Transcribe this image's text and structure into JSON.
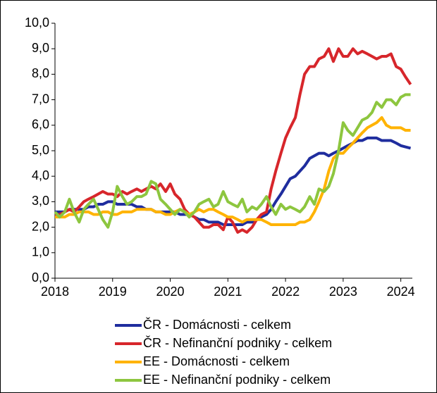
{
  "chart_data": {
    "type": "line",
    "x": [
      2018,
      2018.08,
      2018.17,
      2018.25,
      2018.33,
      2018.42,
      2018.5,
      2018.58,
      2018.67,
      2018.75,
      2018.83,
      2018.92,
      2019,
      2019.08,
      2019.17,
      2019.25,
      2019.33,
      2019.42,
      2019.5,
      2019.58,
      2019.67,
      2019.75,
      2019.83,
      2019.92,
      2020,
      2020.08,
      2020.17,
      2020.25,
      2020.33,
      2020.42,
      2020.5,
      2020.58,
      2020.67,
      2020.75,
      2020.83,
      2020.92,
      2021,
      2021.08,
      2021.17,
      2021.25,
      2021.33,
      2021.42,
      2021.5,
      2021.58,
      2021.67,
      2021.75,
      2021.83,
      2021.92,
      2022,
      2022.08,
      2022.17,
      2022.25,
      2022.33,
      2022.42,
      2022.5,
      2022.58,
      2022.67,
      2022.75,
      2022.83,
      2022.92,
      2023,
      2023.08,
      2023.17,
      2023.25,
      2023.33,
      2023.42,
      2023.5,
      2023.58,
      2023.67,
      2023.75,
      2023.83,
      2023.92,
      2024,
      2024.08,
      2024.17
    ],
    "series": [
      {
        "name": "ČR - Domácnosti - celkem",
        "color": "#1f2d9e",
        "values": [
          2.6,
          2.6,
          2.6,
          2.7,
          2.7,
          2.7,
          2.7,
          2.8,
          2.8,
          2.9,
          2.9,
          3.0,
          3.0,
          2.9,
          2.9,
          2.9,
          2.9,
          2.8,
          2.8,
          2.7,
          2.7,
          2.6,
          2.6,
          2.6,
          2.6,
          2.6,
          2.5,
          2.5,
          2.5,
          2.4,
          2.3,
          2.3,
          2.2,
          2.2,
          2.2,
          2.1,
          2.1,
          2.1,
          2.1,
          2.1,
          2.2,
          2.2,
          2.3,
          2.4,
          2.5,
          2.7,
          3.0,
          3.3,
          3.6,
          3.9,
          4.0,
          4.2,
          4.4,
          4.7,
          4.8,
          4.9,
          4.9,
          4.8,
          4.9,
          5.0,
          5.1,
          5.2,
          5.3,
          5.4,
          5.4,
          5.5,
          5.5,
          5.5,
          5.4,
          5.4,
          5.4,
          5.3,
          5.2,
          5.15,
          5.1
        ]
      },
      {
        "name": "ČR - Nefinanční podniky - celkem",
        "color": "#d7262b",
        "values": [
          2.5,
          2.5,
          2.6,
          2.7,
          2.6,
          2.8,
          3.0,
          3.1,
          3.2,
          3.3,
          3.4,
          3.3,
          3.3,
          3.2,
          3.4,
          3.3,
          3.4,
          3.5,
          3.4,
          3.5,
          3.6,
          3.5,
          3.7,
          3.4,
          3.7,
          3.3,
          3.1,
          2.7,
          2.5,
          2.4,
          2.2,
          2.0,
          2.0,
          2.1,
          2.1,
          1.9,
          2.4,
          2.2,
          1.8,
          1.9,
          1.8,
          2.0,
          2.3,
          2.5,
          2.6,
          3.5,
          4.2,
          4.9,
          5.5,
          5.9,
          6.3,
          7.2,
          8.0,
          8.3,
          8.3,
          8.6,
          8.7,
          9.0,
          8.5,
          9.0,
          8.7,
          8.7,
          9.0,
          8.8,
          8.9,
          8.8,
          8.7,
          8.6,
          8.7,
          8.7,
          8.8,
          8.3,
          8.2,
          7.9,
          7.6
        ]
      },
      {
        "name": "EE - Domácnosti - celkem",
        "color": "#ffb300",
        "values": [
          2.4,
          2.4,
          2.4,
          2.5,
          2.5,
          2.6,
          2.6,
          2.6,
          2.5,
          2.5,
          2.6,
          2.6,
          2.5,
          2.5,
          2.6,
          2.6,
          2.6,
          2.7,
          2.7,
          2.7,
          2.7,
          2.6,
          2.6,
          2.5,
          2.5,
          2.6,
          2.7,
          2.6,
          2.5,
          2.6,
          2.7,
          2.6,
          2.7,
          2.7,
          2.6,
          2.5,
          2.4,
          2.4,
          2.3,
          2.2,
          2.3,
          2.3,
          2.3,
          2.3,
          2.2,
          2.1,
          2.1,
          2.1,
          2.1,
          2.1,
          2.1,
          2.2,
          2.2,
          2.3,
          2.6,
          3.0,
          3.5,
          4.2,
          4.7,
          4.9,
          4.9,
          5.1,
          5.3,
          5.5,
          5.7,
          5.9,
          6.0,
          6.1,
          6.3,
          6.0,
          5.9,
          5.9,
          5.9,
          5.8,
          5.8
        ]
      },
      {
        "name": "EE - Nefinanční podniky - celkem",
        "color": "#8dc63f",
        "values": [
          2.6,
          2.4,
          2.6,
          3.1,
          2.6,
          2.2,
          2.7,
          2.9,
          3.1,
          2.7,
          2.3,
          2.0,
          2.6,
          3.6,
          3.2,
          2.9,
          3.0,
          3.2,
          3.2,
          3.3,
          3.8,
          3.7,
          3.1,
          2.9,
          2.7,
          2.5,
          2.7,
          2.6,
          2.4,
          2.6,
          2.9,
          3.0,
          3.1,
          2.8,
          2.9,
          3.4,
          3.0,
          2.9,
          2.8,
          3.1,
          2.6,
          2.8,
          2.7,
          2.9,
          3.2,
          2.8,
          2.5,
          2.9,
          2.7,
          2.8,
          2.7,
          2.6,
          2.8,
          3.2,
          2.9,
          3.5,
          3.4,
          3.6,
          4.1,
          5.0,
          6.1,
          5.8,
          5.6,
          5.9,
          6.2,
          6.3,
          6.5,
          6.9,
          6.7,
          7.0,
          7.0,
          6.8,
          7.1,
          7.2,
          7.2
        ]
      }
    ],
    "xlim": [
      2018,
      2024.2
    ],
    "xticks": [
      2018,
      2019,
      2020,
      2021,
      2022,
      2023,
      2024
    ],
    "ylim": [
      0,
      10
    ],
    "yticks": [
      {
        "value": 0,
        "label": "0,0"
      },
      {
        "value": 1,
        "label": "1,0"
      },
      {
        "value": 2,
        "label": "2,0"
      },
      {
        "value": 3,
        "label": "3,0"
      },
      {
        "value": 4,
        "label": "4,0"
      },
      {
        "value": 5,
        "label": "5,0"
      },
      {
        "value": 6,
        "label": "6,0"
      },
      {
        "value": 7,
        "label": "7,0"
      },
      {
        "value": 8,
        "label": "8,0"
      },
      {
        "value": 9,
        "label": "9,0"
      },
      {
        "value": 10,
        "label": "10,0"
      }
    ],
    "grid": false,
    "legend": "bottom"
  }
}
